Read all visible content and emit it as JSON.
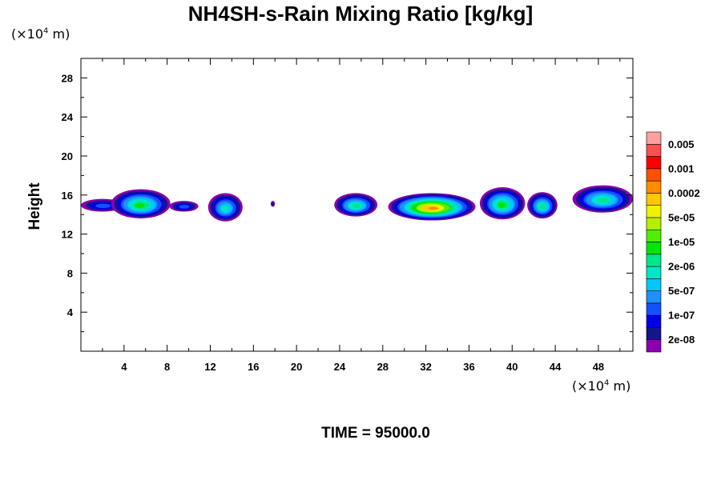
{
  "chart_data": {
    "type": "heatmap",
    "title": "NH4SH-s-Rain Mixing Ratio [kg/kg]",
    "xlabel": "",
    "ylabel": "Height",
    "x_unit": [
      "(×10",
      "4",
      " m)"
    ],
    "y_unit": [
      "(×10",
      "4",
      " m)"
    ],
    "xlim": [
      0,
      51.2
    ],
    "ylim": [
      0,
      30
    ],
    "x_ticks": [
      4,
      8,
      12,
      16,
      20,
      24,
      28,
      32,
      36,
      40,
      44,
      48
    ],
    "y_ticks": [
      4,
      8,
      12,
      16,
      20,
      24,
      28
    ],
    "time_label": "TIME = 95000.0",
    "colorbar": {
      "colors": [
        "#8a00b0",
        "#14148c",
        "#0000e6",
        "#1450ff",
        "#1e90ff",
        "#00c8ff",
        "#00e6c8",
        "#00e68c",
        "#00e600",
        "#50f000",
        "#b4f000",
        "#f0f000",
        "#ffc800",
        "#ff8c00",
        "#ff5000",
        "#ff0000",
        "#ff5050",
        "#ffa0a0"
      ],
      "labels": [
        "2e-08",
        "1e-07",
        "5e-07",
        "2e-06",
        "1e-05",
        "5e-05",
        "0.0002",
        "0.001",
        "0.005"
      ]
    },
    "clouds": [
      {
        "x": [
          0.0,
          4.0
        ],
        "y": [
          14.3,
          15.6
        ],
        "level": 3
      },
      {
        "x": [
          2.8,
          8.3
        ],
        "y": [
          13.6,
          16.6
        ],
        "level": 8
      },
      {
        "x": [
          8.2,
          10.9
        ],
        "y": [
          14.3,
          15.4
        ],
        "level": 3
      },
      {
        "x": [
          11.8,
          15.0
        ],
        "y": [
          13.3,
          16.2
        ],
        "level": 6
      },
      {
        "x": [
          17.6,
          18.0
        ],
        "y": [
          14.8,
          15.4
        ],
        "level": 1
      },
      {
        "x": [
          23.5,
          27.5
        ],
        "y": [
          13.8,
          16.2
        ],
        "level": 7
      },
      {
        "x": [
          28.5,
          36.6
        ],
        "y": [
          13.4,
          16.2
        ],
        "level": 13
      },
      {
        "x": [
          37.0,
          41.2
        ],
        "y": [
          13.5,
          16.8
        ],
        "level": 8
      },
      {
        "x": [
          41.4,
          44.2
        ],
        "y": [
          13.6,
          16.3
        ],
        "level": 7
      },
      {
        "x": [
          45.6,
          51.2
        ],
        "y": [
          14.2,
          17.0
        ],
        "level": 7
      }
    ]
  }
}
